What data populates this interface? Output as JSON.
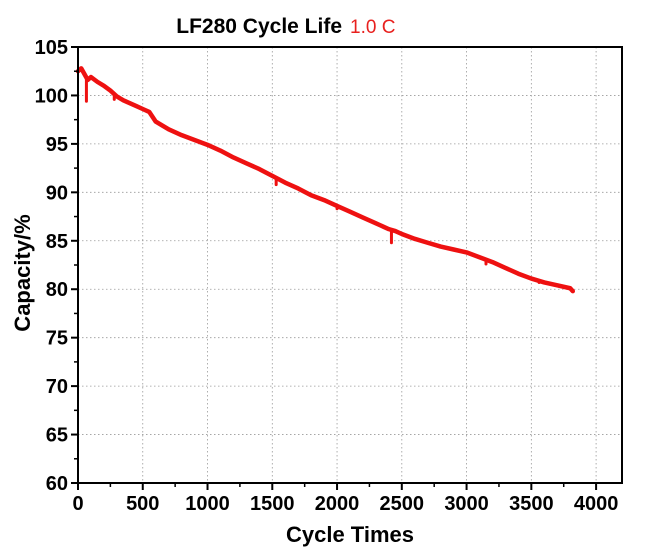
{
  "chart_data": {
    "type": "line",
    "title": "LF280 Cycle Life",
    "subtitle": "1.0 C",
    "subtitle_color": "#e8201e",
    "line_color": "#ee1111",
    "xlabel": "Cycle Times",
    "ylabel": "Capacity/%",
    "xlim": [
      0,
      4200
    ],
    "ylim": [
      60,
      105
    ],
    "grid": true,
    "x_ticks": [
      0,
      500,
      1000,
      1500,
      2000,
      2500,
      3000,
      3500,
      4000
    ],
    "y_ticks": [
      60,
      65,
      70,
      75,
      80,
      85,
      90,
      95,
      100,
      105
    ],
    "series": [
      {
        "name": "1.0 C",
        "x": [
          0,
          25,
          50,
          75,
          100,
          150,
          200,
          250,
          300,
          350,
          400,
          450,
          500,
          550,
          600,
          700,
          800,
          900,
          1000,
          1100,
          1200,
          1300,
          1400,
          1500,
          1600,
          1700,
          1800,
          1900,
          2000,
          2100,
          2200,
          2300,
          2400,
          2450,
          2500,
          2600,
          2700,
          2800,
          2900,
          3000,
          3100,
          3200,
          3300,
          3400,
          3500,
          3600,
          3700,
          3800,
          3820
        ],
        "values": [
          102.5,
          102.8,
          102.2,
          101.6,
          101.9,
          101.4,
          101.0,
          100.5,
          99.9,
          99.5,
          99.2,
          98.9,
          98.6,
          98.3,
          97.3,
          96.5,
          95.9,
          95.4,
          94.9,
          94.3,
          93.6,
          93.0,
          92.4,
          91.7,
          91.0,
          90.4,
          89.7,
          89.2,
          88.6,
          88.0,
          87.4,
          86.8,
          86.2,
          86.0,
          85.7,
          85.2,
          84.8,
          84.4,
          84.1,
          83.8,
          83.3,
          82.8,
          82.2,
          81.6,
          81.1,
          80.7,
          80.4,
          80.1,
          79.8
        ]
      }
    ],
    "dips": [
      {
        "x": 65,
        "values": [
          99.4
        ]
      },
      {
        "x": 280,
        "values": [
          99.6
        ]
      },
      {
        "x": 1530,
        "values": [
          90.8
        ]
      },
      {
        "x": 2000,
        "values": [
          88.3
        ]
      },
      {
        "x": 2420,
        "values": [
          84.8
        ]
      },
      {
        "x": 3150,
        "values": [
          82.6
        ]
      },
      {
        "x": 3560,
        "values": [
          80.7
        ]
      }
    ]
  }
}
